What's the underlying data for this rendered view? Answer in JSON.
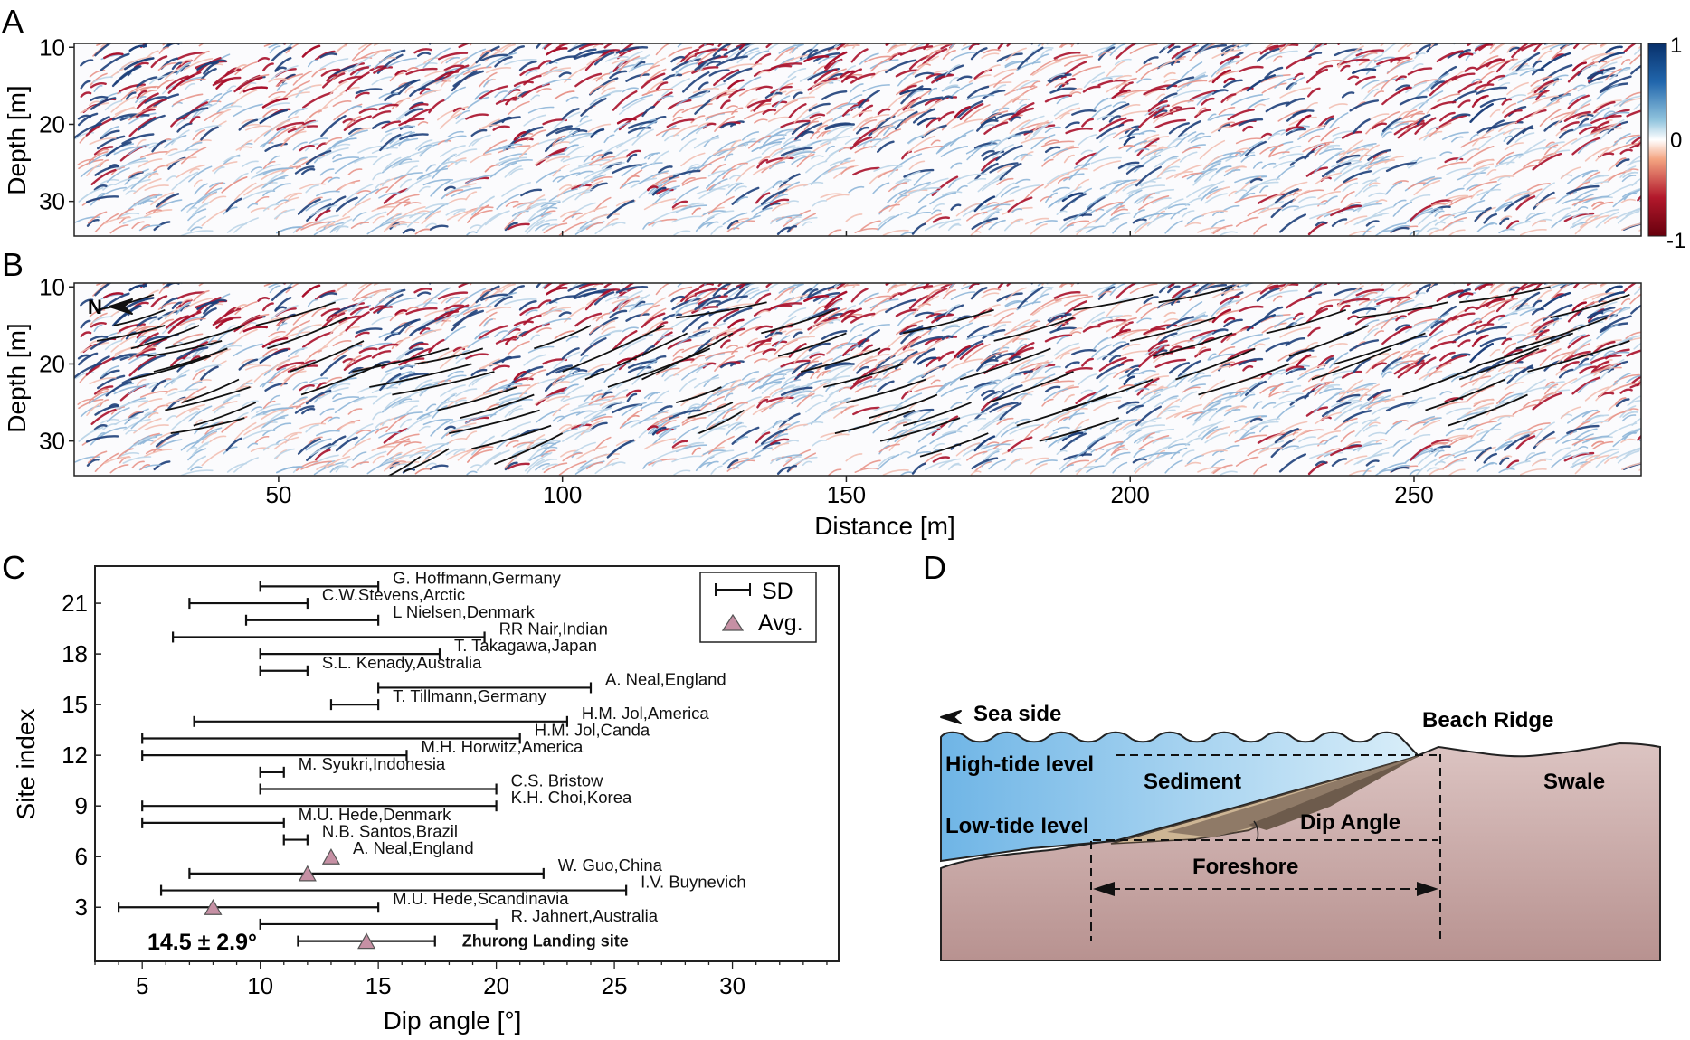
{
  "panels": {
    "a": {
      "letter": "A"
    },
    "b": {
      "letter": "B",
      "north_label": "N"
    },
    "c": {
      "letter": "C"
    },
    "d": {
      "letter": "D"
    }
  },
  "gpr": {
    "depth_label": "Depth [m]",
    "distance_label": "Distance [m]",
    "depth_ticks": [
      10,
      20,
      30
    ],
    "depth_range": [
      9.5,
      34.5
    ],
    "distance_ticks": [
      50,
      100,
      150,
      200,
      250
    ],
    "distance_range": [
      14,
      290
    ],
    "colorbar": {
      "ticks": [
        "1",
        "0",
        "-1"
      ],
      "colors": [
        "#08306b",
        "#2166ac",
        "#92c5de",
        "#ffffff",
        "#f4a582",
        "#b2182b",
        "#67000d"
      ]
    }
  },
  "chart_data": {
    "type": "scatter",
    "xlabel": "Dip angle [°]",
    "ylabel": "Site index",
    "xlim": [
      3,
      34.5
    ],
    "ylim": [
      -0.2,
      23.2
    ],
    "xticks": [
      5,
      10,
      15,
      20,
      25,
      30
    ],
    "yticks": [
      3,
      6,
      9,
      12,
      15,
      18,
      21
    ],
    "legend": {
      "position": "top-right",
      "entries": [
        "SD",
        "Avg."
      ]
    },
    "summary_label": "14.5 ± 2.9°",
    "sites": [
      {
        "index": 22,
        "label": "G. Hoffmann,Germany",
        "min": 10,
        "max": 15,
        "avg": null
      },
      {
        "index": 21,
        "label": "C.W.Stevens,Arctic",
        "min": 7,
        "max": 12,
        "avg": null
      },
      {
        "index": 20,
        "label": "L Nielsen,Denmark",
        "min": 9.4,
        "max": 15,
        "avg": null
      },
      {
        "index": 19,
        "label": "RR Nair,Indian",
        "min": 6.3,
        "max": 19.5,
        "avg": null
      },
      {
        "index": 18,
        "label": "T. Takagawa,Japan",
        "min": 10,
        "max": 17.6,
        "avg": null
      },
      {
        "index": 17,
        "label": "S.L. Kenady,Australia",
        "min": 10,
        "max": 12,
        "avg": null
      },
      {
        "index": 16,
        "label": "A. Neal,England",
        "min": 15,
        "max": 24,
        "avg": null
      },
      {
        "index": 15,
        "label": "T. Tillmann,Germany",
        "min": 13,
        "max": 15,
        "avg": null
      },
      {
        "index": 14,
        "label": "H.M. Jol,America",
        "min": 7.2,
        "max": 23,
        "avg": null
      },
      {
        "index": 13,
        "label": "H.M. Jol,Canda",
        "min": 5,
        "max": 21,
        "avg": null
      },
      {
        "index": 12,
        "label": "M.H. Horwitz,America",
        "min": 5,
        "max": 16.2,
        "avg": null
      },
      {
        "index": 11,
        "label": "M. Syukri,Indonesia",
        "min": 10,
        "max": 11,
        "avg": null
      },
      {
        "index": 10,
        "label": "C.S. Bristow",
        "min": 10,
        "max": 20,
        "avg": null
      },
      {
        "index": 9,
        "label": "K.H. Choi,Korea",
        "min": 5,
        "max": 20,
        "avg": null
      },
      {
        "index": 8,
        "label": "M.U. Hede,Denmark",
        "min": 5,
        "max": 11,
        "avg": null
      },
      {
        "index": 7,
        "label": "N.B. Santos,Brazil",
        "min": 11,
        "max": 12,
        "avg": null
      },
      {
        "index": 6,
        "label": "A. Neal,England",
        "min": null,
        "max": null,
        "avg": 13
      },
      {
        "index": 5,
        "label": "W. Guo,China",
        "min": 7,
        "max": 22,
        "avg": 12
      },
      {
        "index": 4,
        "label": "I.V. Buynevich",
        "min": 5.8,
        "max": 25.5,
        "avg": null
      },
      {
        "index": 3,
        "label": "M.U. Hede,Scandinavia",
        "min": 4,
        "max": 15,
        "avg": 8
      },
      {
        "index": 2,
        "label": "R. Jahnert,Australia",
        "min": 10,
        "max": 20,
        "avg": null
      },
      {
        "index": 1,
        "label": "Zhurong Landing site",
        "min": 11.6,
        "max": 17.4,
        "avg": 14.5,
        "highlight": true
      }
    ]
  },
  "diagram": {
    "sea_side": "Sea side",
    "beach_ridge": "Beach Ridge",
    "high_tide": "High-tide level",
    "sediment": "Sediment",
    "swale": "Swale",
    "low_tide": "Low-tide level",
    "dip_angle": "Dip Angle",
    "foreshore": "Foreshore",
    "colors": {
      "water": "#9ccfee",
      "land": "#c9a4a2",
      "sediment_light": "#c8b18f",
      "sediment_mid": "#8c7663",
      "sediment_dark": "#6b5a4b"
    }
  }
}
